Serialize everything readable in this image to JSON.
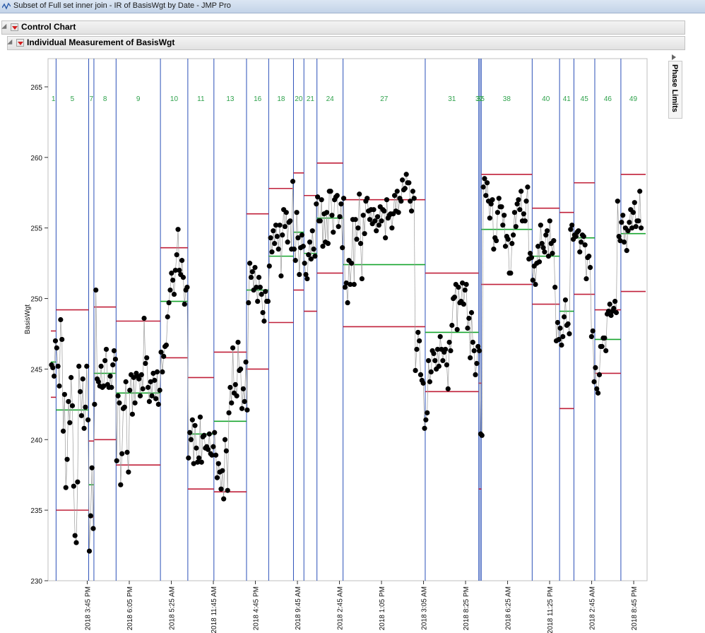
{
  "window": {
    "title": "Subset of Full set inner join - IR of BasisWgt by Date - JMP Pro"
  },
  "report": {
    "outline_main": "Control Chart",
    "outline_sub": "Individual Measurement of BasisWgt",
    "phase_limits_label": "Phase Limits"
  },
  "colors": {
    "ucl": "#c0203a",
    "center": "#17a52e",
    "phase_line": "#2b50b8",
    "point": "#000000",
    "connector": "#9a9a9a",
    "phase_label": "#2fa24c"
  },
  "chart_data": {
    "type": "scatter",
    "title": "",
    "xlabel": "",
    "ylabel": "BasisWgt",
    "ylim": [
      230,
      267
    ],
    "yticks": [
      230,
      235,
      240,
      245,
      250,
      255,
      260,
      265
    ],
    "grid": false,
    "x_tick_labels": [
      "2018 3:45 PM",
      "2018 6:05 PM",
      "2018 5:25 AM",
      "2018 11:45 AM",
      "2018 4:45 PM",
      "2018 9:45 AM",
      "2018 2:45 AM",
      "2018 1:05 PM",
      "2018 3:05 AM",
      "2018 8:25 PM",
      "2018 6:25 AM",
      "2018 11:25 PM",
      "2018 2:45 AM",
      "2018 8:45 PM"
    ],
    "phases": [
      {
        "label": "1",
        "start": 0,
        "end": 4,
        "ucl": 247.7,
        "cl": 245.5,
        "lcl": 243.0
      },
      {
        "label": "5",
        "start": 4,
        "end": 29,
        "ucl": 249.2,
        "cl": 242.1,
        "lcl": 235.0
      },
      {
        "label": "7",
        "start": 29,
        "end": 33,
        "ucl": 239.9,
        "cl": 236.8,
        "lcl": 234.5
      },
      {
        "label": "8",
        "start": 33,
        "end": 50,
        "ucl": 249.4,
        "cl": 244.7,
        "lcl": 240.0
      },
      {
        "label": "9",
        "start": 50,
        "end": 84,
        "ucl": 248.4,
        "cl": 243.3,
        "lcl": 238.2
      },
      {
        "label": "10",
        "start": 84,
        "end": 105,
        "ucl": 253.6,
        "cl": 249.8,
        "lcl": 245.8
      },
      {
        "label": "11",
        "start": 105,
        "end": 125,
        "ucl": 244.4,
        "cl": 240.4,
        "lcl": 236.5
      },
      {
        "label": "13",
        "start": 125,
        "end": 150,
        "ucl": 246.2,
        "cl": 241.3,
        "lcl": 236.3
      },
      {
        "label": "16",
        "start": 150,
        "end": 167,
        "ucl": 256.0,
        "cl": 250.6,
        "lcl": 245.0
      },
      {
        "label": "18",
        "start": 167,
        "end": 186,
        "ucl": 257.8,
        "cl": 253.0,
        "lcl": 248.3
      },
      {
        "label": "20",
        "start": 186,
        "end": 194,
        "ucl": 258.9,
        "cl": 254.7,
        "lcl": 250.6
      },
      {
        "label": "21",
        "start": 194,
        "end": 204,
        "ucl": 257.3,
        "cl": 253.2,
        "lcl": 249.1
      },
      {
        "label": "24",
        "start": 204,
        "end": 224,
        "ucl": 259.6,
        "cl": 255.7,
        "lcl": 251.8
      },
      {
        "label": "27",
        "start": 224,
        "end": 287,
        "ucl": 257.0,
        "cl": 252.4,
        "lcl": 248.0
      },
      {
        "label": "31",
        "start": 287,
        "end": 328,
        "ucl": 251.8,
        "cl": 247.6,
        "lcl": 243.4
      },
      {
        "label": "32",
        "start": 328,
        "end": 329,
        "ucl": 244.0,
        "cl": 240.3,
        "lcl": 236.5
      },
      {
        "label": "35",
        "start": 329,
        "end": 330,
        "ucl": 244.0,
        "cl": 240.3,
        "lcl": 236.5
      },
      {
        "label": "38",
        "start": 330,
        "end": 369,
        "ucl": 258.8,
        "cl": 254.9,
        "lcl": 251.0
      },
      {
        "label": "40",
        "start": 369,
        "end": 390,
        "ucl": 256.4,
        "cl": 253.0,
        "lcl": 249.6
      },
      {
        "label": "41",
        "start": 390,
        "end": 401,
        "ucl": 256.1,
        "cl": 249.1,
        "lcl": 242.2
      },
      {
        "label": "45",
        "start": 401,
        "end": 417,
        "ucl": 258.2,
        "cl": 254.3,
        "lcl": 250.3
      },
      {
        "label": "46",
        "start": 417,
        "end": 437,
        "ucl": 249.2,
        "cl": 247.1,
        "lcl": 244.7
      },
      {
        "label": "49",
        "start": 437,
        "end": 456,
        "ucl": 258.8,
        "cl": 254.6,
        "lcl": 250.5
      }
    ],
    "x_count": 456,
    "values": [
      245.3,
      245.1,
      244.5,
      247.0,
      246.5,
      245.2,
      243.8,
      248.5,
      247.1,
      240.6,
      243.2,
      236.6,
      238.6,
      242.7,
      241.2,
      244.4,
      242.4,
      236.7,
      233.2,
      232.7,
      237.0,
      245.2,
      243.4,
      241.7,
      244.3,
      240.8,
      242.3,
      245.2,
      241.4,
      232.1,
      234.6,
      238.0,
      233.7,
      242.5,
      250.6,
      244.3,
      244.1,
      243.8,
      245.2,
      243.7,
      243.8,
      245.6,
      246.4,
      243.9,
      243.7,
      244.5,
      243.7,
      245.3,
      246.3,
      245.7,
      238.5,
      243.1,
      242.6,
      236.8,
      239.0,
      242.2,
      242.3,
      244.1,
      239.1,
      237.7,
      243.5,
      244.6,
      241.8,
      244.4,
      242.6,
      244.7,
      244.5,
      244.3,
      243.1,
      244.6,
      243.6,
      248.6,
      245.4,
      245.8,
      243.7,
      242.7,
      244.1,
      243.1,
      244.7,
      244.2,
      242.9,
      244.8,
      242.5,
      243.5,
      246.2,
      244.8,
      245.9,
      246.6,
      246.7,
      248.7,
      249.7,
      250.6,
      251.8,
      251.3,
      250.3,
      252.0,
      253.1,
      254.9,
      252.0,
      251.7,
      252.7,
      251.5,
      249.6,
      250.6,
      250.8,
      238.7,
      240.5,
      240.0,
      241.4,
      238.3,
      241.0,
      239.4,
      238.4,
      238.7,
      241.6,
      238.4,
      240.2,
      240.3,
      239.4,
      239.5,
      239.3,
      240.4,
      239.0,
      238.9,
      239.5,
      240.5,
      238.9,
      237.3,
      238.3,
      237.7,
      236.5,
      237.8,
      235.8,
      240.0,
      239.2,
      236.4,
      241.9,
      243.7,
      242.6,
      246.5,
      243.3,
      243.9,
      243.1,
      246.9,
      244.9,
      245.0,
      242.2,
      243.6,
      242.7,
      245.5,
      242.1,
      249.7,
      252.5,
      251.5,
      251.9,
      250.6,
      252.2,
      250.8,
      249.8,
      251.5,
      250.8,
      250.3,
      249.0,
      248.4,
      250.5,
      249.8,
      249.8,
      252.3,
      254.3,
      253.3,
      254.8,
      253.9,
      255.2,
      254.4,
      253.5,
      255.2,
      251.6,
      254.5,
      256.3,
      255.1,
      256.1,
      254.0,
      255.4,
      255.5,
      253.5,
      258.3,
      253.5,
      252.7,
      256.1,
      254.3,
      251.7,
      253.6,
      254.5,
      253.7,
      252.5,
      251.7,
      251.4,
      253.1,
      254.0,
      252.8,
      254.8,
      253.5,
      253.0,
      256.7,
      257.2,
      255.5,
      255.5,
      257.0,
      253.7,
      256.0,
      254.0,
      256.1,
      253.9,
      257.6,
      257.6,
      255.9,
      254.7,
      257.0,
      257.2,
      257.3,
      255.1,
      255.8,
      256.7,
      253.6,
      257.1,
      250.8,
      251.1,
      249.7,
      252.7,
      251.0,
      252.5,
      255.6,
      251.0,
      255.6,
      254.2,
      255.0,
      257.4,
      253.9,
      251.4,
      255.9,
      254.6,
      256.9,
      257.1,
      256.2,
      255.6,
      256.3,
      255.3,
      256.3,
      255.5,
      254.8,
      255.8,
      255.2,
      256.5,
      255.5,
      256.3,
      256.2,
      254.3,
      257.0,
      255.7,
      255.9,
      256.0,
      255.0,
      256.0,
      257.3,
      256.2,
      257.6,
      256.1,
      257.1,
      256.9,
      258.4,
      257.7,
      257.8,
      258.8,
      258.2,
      258.2,
      256.9,
      256.2,
      257.6,
      257.1,
      244.9,
      246.4,
      247.6,
      247.0,
      244.6,
      244.2,
      244.0,
      240.8,
      241.4,
      241.9,
      245.6,
      244.1,
      244.8,
      246.3,
      246.1,
      245.6,
      245.0,
      246.4,
      245.2,
      247.3,
      246.4,
      245.6,
      246.2,
      246.4,
      245.3,
      243.6,
      246.9,
      246.3,
      248.1,
      250.0,
      250.1,
      251.0,
      247.8,
      250.8,
      249.7,
      249.8,
      251.1,
      249.6,
      250.6,
      251.0,
      247.9,
      248.6,
      245.8,
      249.0,
      246.9,
      246.3,
      244.6,
      245.4,
      246.6,
      246.3,
      240.4,
      240.3,
      257.9,
      258.5,
      257.3,
      258.2,
      256.9,
      255.7,
      256.7,
      257.0,
      253.5,
      254.3,
      254.1,
      256.1,
      257.1,
      256.5,
      256.5,
      255.2,
      255.9,
      253.7,
      254.4,
      254.2,
      251.8,
      251.8,
      253.9,
      254.5,
      256.1,
      255.1,
      256.7,
      257.0,
      256.3,
      257.6,
      255.5,
      256.0,
      255.5,
      256.9,
      257.9,
      252.8,
      253.2,
      252.9,
      251.3,
      252.3,
      251.0,
      252.5,
      253.7,
      252.6,
      255.2,
      253.9,
      253.6,
      253.3,
      254.5,
      254.8,
      253.0,
      255.5,
      253.9,
      253.2,
      254.1,
      250.8,
      247.0,
      248.3,
      247.1,
      247.9,
      246.7,
      247.3,
      248.7,
      249.9,
      248.1,
      248.2,
      247.5,
      254.9,
      255.2,
      254.2,
      254.5,
      254.4,
      254.7,
      254.8,
      253.3,
      254.0,
      254.5,
      254.4,
      253.8,
      251.4,
      252.9,
      253.0,
      252.2,
      247.3,
      247.7,
      244.1,
      245.1,
      243.6,
      243.3,
      244.6,
      246.6,
      246.6,
      247.2,
      247.2,
      246.3,
      248.9,
      249.1,
      249.6,
      248.8,
      249.1,
      249.3,
      249.8,
      249.0,
      256.9,
      254.4,
      254.1,
      255.4,
      255.9,
      254.0,
      255.0,
      253.4,
      254.8,
      255.4,
      256.3,
      255.0,
      256.1,
      256.8,
      255.1,
      255.5,
      255.5,
      257.6,
      255.0
    ]
  }
}
